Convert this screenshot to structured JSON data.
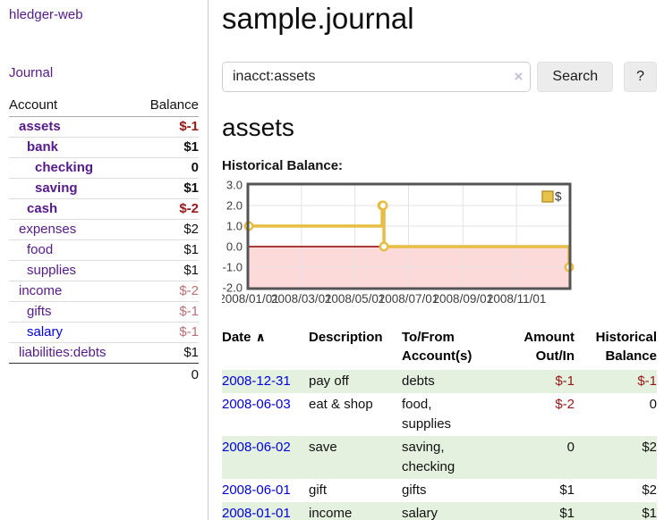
{
  "app": {
    "brand": "hledger-web",
    "nav_journal": "Journal"
  },
  "sidebar": {
    "header": {
      "account": "Account",
      "balance": "Balance"
    },
    "rows": [
      {
        "label": "assets",
        "balance": "$-1",
        "depth": 1,
        "bold": true,
        "balance_class": "amt-neg",
        "blue": false
      },
      {
        "label": "bank",
        "balance": "$1",
        "depth": 2,
        "bold": true,
        "balance_class": "amt-pos",
        "blue": false
      },
      {
        "label": "checking",
        "balance": "0",
        "depth": 3,
        "bold": true,
        "balance_class": "amt-pos",
        "blue": false
      },
      {
        "label": "saving",
        "balance": "$1",
        "depth": 3,
        "bold": true,
        "balance_class": "amt-pos",
        "blue": false
      },
      {
        "label": "cash",
        "balance": "$-2",
        "depth": 2,
        "bold": true,
        "balance_class": "amt-neg",
        "blue": false
      },
      {
        "label": "expenses",
        "balance": "$2",
        "depth": 1,
        "bold": false,
        "balance_class": "amt-pos",
        "blue": false
      },
      {
        "label": "food",
        "balance": "$1",
        "depth": 2,
        "bold": false,
        "balance_class": "amt-pos",
        "blue": false
      },
      {
        "label": "supplies",
        "balance": "$1",
        "depth": 2,
        "bold": false,
        "balance_class": "amt-pos",
        "blue": false
      },
      {
        "label": "income",
        "balance": "$-2",
        "depth": 1,
        "bold": false,
        "balance_class": "amt-neglight",
        "blue": false
      },
      {
        "label": "gifts",
        "balance": "$-1",
        "depth": 2,
        "bold": false,
        "balance_class": "amt-neglight",
        "blue": false
      },
      {
        "label": "salary",
        "balance": "$-1",
        "depth": 2,
        "bold": false,
        "balance_class": "amt-neglight",
        "blue": true
      },
      {
        "label": "liabilities:debts",
        "balance": "$1",
        "depth": 1,
        "bold": false,
        "balance_class": "amt-pos",
        "blue": false
      }
    ],
    "total": "0"
  },
  "main": {
    "title": "sample.journal",
    "search": {
      "value": "inacct:assets",
      "clear_icon": "×",
      "button_label": "Search",
      "help_label": "?"
    },
    "account_heading": "assets",
    "chart_label": "Historical Balance:"
  },
  "chart_data": {
    "type": "line",
    "step": true,
    "title": "Historical Balance:",
    "series": [
      {
        "name": "$",
        "color": "#e7bd45",
        "points": [
          [
            "2008-01-01",
            1
          ],
          [
            "2008-06-01",
            2
          ],
          [
            "2008-06-02",
            2
          ],
          [
            "2008-06-03",
            0
          ],
          [
            "2008-12-31",
            -1
          ]
        ]
      }
    ],
    "xlim": [
      "2008-01-01",
      "2008-12-31"
    ],
    "ylim": [
      -2,
      3
    ],
    "y_ticks": [
      "3.0",
      "2.0",
      "1.0",
      "0.0",
      "-1.0",
      "-2.0"
    ],
    "x_ticks": [
      "2008/01/01",
      "2008/03/01",
      "2008/05/01",
      "2008/07/01",
      "2008/09/01",
      "2008/11/01"
    ],
    "grid": true,
    "legend_position": "top-right",
    "legend": {
      "label": "$",
      "swatch_fill": "#e8c34c",
      "swatch_border": "#b8912a"
    },
    "negative_fill": "#fcdada",
    "zero_line_color": "#8b0000",
    "grid_color": "#e3e3e3",
    "border_color": "#545454",
    "tick_color": "#3d3d3d"
  },
  "register": {
    "headers": [
      "Date",
      "Description",
      "To/From Account(s)",
      "Amount Out/In",
      "Historical Balance"
    ],
    "sort_arrow": "∧",
    "rows": [
      {
        "date": "2008-12-31",
        "description": "pay off",
        "accounts": "debts",
        "amount": "$-1",
        "amount_neg": true,
        "balance": "$-1",
        "balance_neg": true
      },
      {
        "date": "2008-06-03",
        "description": "eat & shop",
        "accounts": "food, supplies",
        "amount": "$-2",
        "amount_neg": true,
        "balance": "0",
        "balance_neg": false
      },
      {
        "date": "2008-06-02",
        "description": "save",
        "accounts": "saving, checking",
        "amount": "0",
        "amount_neg": false,
        "balance": "$2",
        "balance_neg": false
      },
      {
        "date": "2008-06-01",
        "description": "gift",
        "accounts": "gifts",
        "amount": "$1",
        "amount_neg": false,
        "balance": "$2",
        "balance_neg": false
      },
      {
        "date": "2008-01-01",
        "description": "income",
        "accounts": "salary",
        "amount": "$1",
        "amount_neg": false,
        "balance": "$1",
        "balance_neg": false
      }
    ]
  }
}
